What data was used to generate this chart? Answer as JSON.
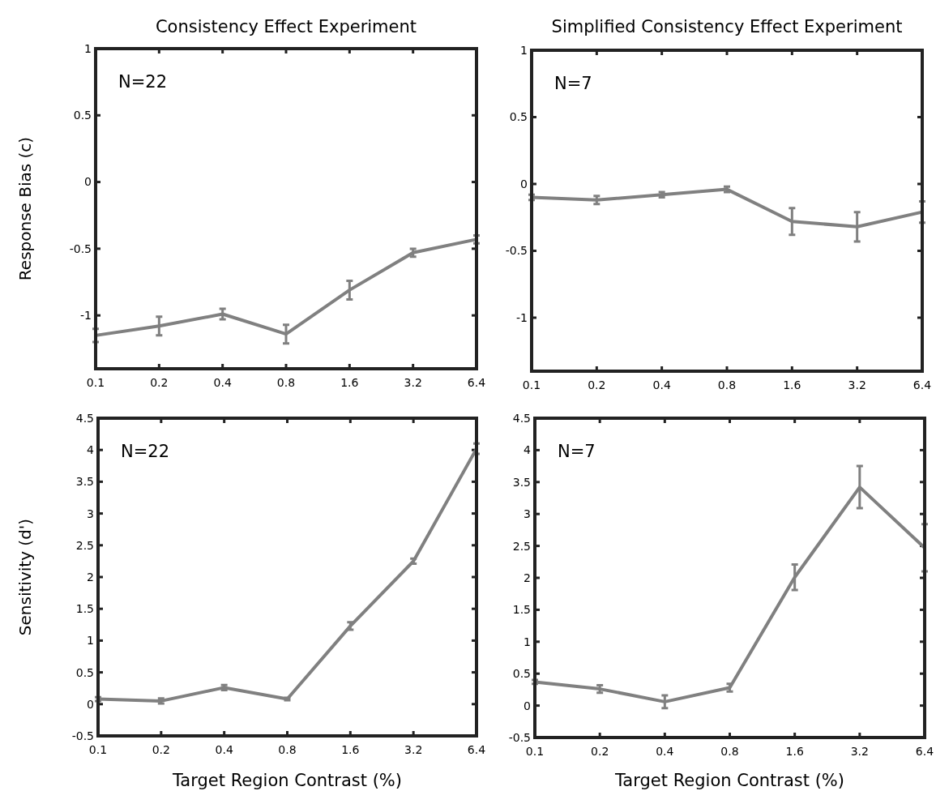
{
  "chart_data": [
    {
      "type": "line",
      "title": "Consistency Effect Experiment",
      "ylabel": "Response Bias (c)",
      "annotations": [
        "N=22"
      ],
      "categories": [
        "0.1",
        "0.2",
        "0.4",
        "0.8",
        "1.6",
        "3.2",
        "6.4"
      ],
      "series": [
        {
          "color": "#808080",
          "values": [
            -1.15,
            -1.08,
            -0.99,
            -1.14,
            -0.81,
            -0.53,
            -0.43
          ],
          "errors": [
            0.05,
            0.07,
            0.04,
            0.07,
            0.07,
            0.03,
            0.03
          ]
        }
      ],
      "ylim": [
        -1.4,
        1
      ],
      "yticks": [
        -1,
        -0.5,
        0,
        0.5,
        1
      ]
    },
    {
      "type": "line",
      "title": "Simplified Consistency Effect Experiment",
      "annotations": [
        "N=7"
      ],
      "categories": [
        "0.1",
        "0.2",
        "0.4",
        "0.8",
        "1.6",
        "3.2",
        "6.4"
      ],
      "series": [
        {
          "color": "#808080",
          "values": [
            -0.1,
            -0.12,
            -0.08,
            -0.04,
            -0.28,
            -0.32,
            -0.21
          ],
          "errors": [
            0.02,
            0.03,
            0.02,
            0.02,
            0.1,
            0.11,
            0.08
          ]
        }
      ],
      "ylim": [
        -1.4,
        1
      ],
      "yticks": [
        -1,
        -0.5,
        0,
        0.5,
        1
      ]
    },
    {
      "type": "line",
      "xlabel": "Target Region Contrast (%)",
      "ylabel": "Sensitivity (d')",
      "annotations": [
        "N=22"
      ],
      "categories": [
        "0.1",
        "0.2",
        "0.4",
        "0.8",
        "1.6",
        "3.2",
        "6.4"
      ],
      "series": [
        {
          "color": "#808080",
          "values": [
            0.08,
            0.05,
            0.26,
            0.08,
            1.23,
            2.25,
            4.02
          ],
          "errors": [
            0.03,
            0.04,
            0.04,
            0.02,
            0.06,
            0.04,
            0.08
          ]
        }
      ],
      "ylim": [
        -0.5,
        4.5
      ],
      "yticks": [
        -0.5,
        0,
        0.5,
        1,
        1.5,
        2,
        2.5,
        3,
        3.5,
        4,
        4.5
      ]
    },
    {
      "type": "line",
      "xlabel": "Target Region Contrast (%)",
      "annotations": [
        "N=7"
      ],
      "categories": [
        "0.1",
        "0.2",
        "0.4",
        "0.8",
        "1.6",
        "3.2",
        "6.4"
      ],
      "series": [
        {
          "color": "#808080",
          "values": [
            0.37,
            0.26,
            0.06,
            0.28,
            2.01,
            3.42,
            2.47
          ],
          "errors": [
            0.03,
            0.06,
            0.1,
            0.06,
            0.2,
            0.33,
            0.37
          ]
        }
      ],
      "ylim": [
        -0.5,
        4.5
      ],
      "yticks": [
        -0.5,
        0,
        0.5,
        1,
        1.5,
        2,
        2.5,
        3,
        3.5,
        4,
        4.5
      ]
    }
  ]
}
